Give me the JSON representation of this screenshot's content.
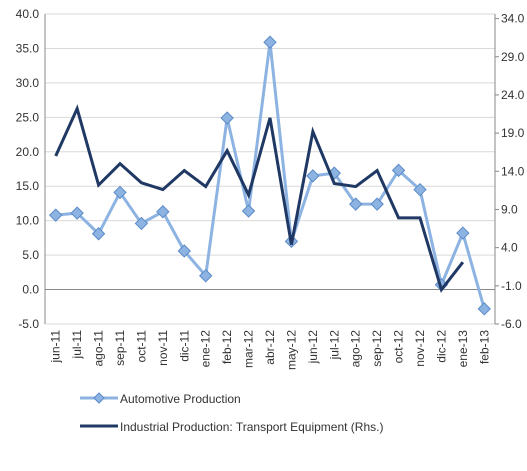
{
  "chart_data": {
    "type": "line",
    "categories": [
      "jun-11",
      "jul-11",
      "ago-11",
      "sep-11",
      "oct-11",
      "nov-11",
      "dic-11",
      "ene-12",
      "feb-12",
      "mar-12",
      "abr-12",
      "may-12",
      "jun-12",
      "jul-12",
      "ago-12",
      "sep-12",
      "oct-12",
      "nov-12",
      "dic-12",
      "ene-13",
      "feb-13"
    ],
    "series": [
      {
        "name": "Automotive Production",
        "color": "#8db3e2",
        "marker": "diamond",
        "values": [
          10.8,
          11.1,
          8.1,
          14.1,
          9.6,
          11.3,
          5.6,
          2.0,
          24.9,
          11.4,
          35.9,
          7.0,
          16.5,
          16.9,
          12.4,
          12.4,
          17.3,
          14.5,
          0.7,
          8.2,
          -2.8
        ]
      },
      {
        "name": "Industrial Production: Transport Equipment (Rhs.)",
        "color": "#1f3864",
        "axis": "y2",
        "values": [
          16.0,
          22.2,
          12.2,
          15.0,
          12.5,
          11.6,
          14.1,
          12.0,
          16.7,
          10.9,
          21.0,
          4.4,
          19.2,
          12.4,
          12.0,
          14.1,
          7.9,
          7.9,
          -1.5,
          2.1,
          null
        ]
      }
    ],
    "ylim": [
      -5,
      40
    ],
    "yticks": [
      {
        "value": -5,
        "label": "-5.0"
      },
      {
        "value": 0,
        "label": "0.0"
      },
      {
        "value": 5,
        "label": "5.0"
      },
      {
        "value": 10,
        "label": "10.0"
      },
      {
        "value": 15,
        "label": "15.0"
      },
      {
        "value": 20,
        "label": "20.0"
      },
      {
        "value": 25,
        "label": "25.0"
      },
      {
        "value": 30,
        "label": "30.0"
      },
      {
        "value": 35,
        "label": "35.0"
      },
      {
        "value": 40,
        "label": "40.0"
      }
    ],
    "y2lim": [
      -6,
      34.6
    ],
    "y2ticks": [
      {
        "value": -6,
        "label": "-6.0"
      },
      {
        "value": -1,
        "label": "-1.0"
      },
      {
        "value": 4,
        "label": "4.0"
      },
      {
        "value": 9,
        "label": "9.0"
      },
      {
        "value": 14,
        "label": "14.0"
      },
      {
        "value": 19,
        "label": "19.0"
      },
      {
        "value": 24,
        "label": "24.0"
      },
      {
        "value": 29,
        "label": "29.0"
      },
      {
        "value": 34,
        "label": "34.0"
      }
    ],
    "grid": true
  }
}
